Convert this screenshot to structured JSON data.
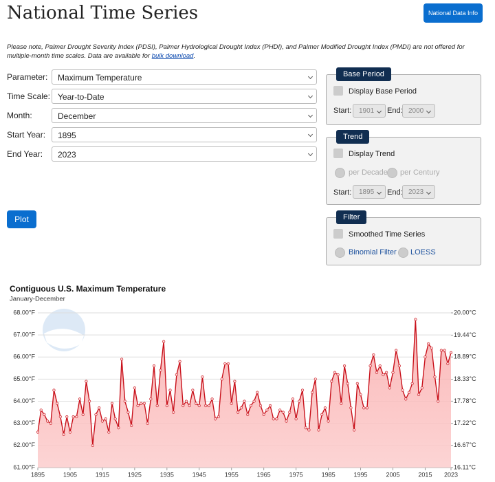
{
  "header": {
    "title": "National Time Series",
    "button": "National Data Info"
  },
  "note": {
    "text": "Please note, Palmer Drought Severity Index (PDSI), Palmer Hydrological Drought Index (PHDI), and Palmer Modified Drought Index (PMDI) are not offered for multiple-month time scales. Data are available for ",
    "link": "bulk download",
    "end": "."
  },
  "form": {
    "fields": [
      {
        "label": "Parameter:",
        "value": "Maximum Temperature"
      },
      {
        "label": "Time Scale:",
        "value": "Year-to-Date"
      },
      {
        "label": "Month:",
        "value": "December"
      },
      {
        "label": "Start Year:",
        "value": "1895"
      },
      {
        "label": "End Year:",
        "value": "2023"
      }
    ],
    "plot": "Plot"
  },
  "base_period": {
    "legend": "Base Period",
    "checkbox": "Display Base Period",
    "start_label": "Start:",
    "start": "1901",
    "end_label": "End:",
    "end": "2000"
  },
  "trend": {
    "legend": "Trend",
    "checkbox": "Display Trend",
    "radio1": "per Decade",
    "radio2": "per Century",
    "start_label": "Start:",
    "start": "1895",
    "end_label": "End:",
    "end": "2023"
  },
  "filter": {
    "legend": "Filter",
    "checkbox": "Smoothed Time Series",
    "radio1": "Binomial Filter",
    "radio2": "LOESS"
  },
  "chart_data": {
    "type": "line",
    "title": "Contiguous U.S. Maximum Temperature",
    "subtitle": "January-December",
    "x": [
      1895,
      1896,
      1897,
      1898,
      1899,
      1900,
      1901,
      1902,
      1903,
      1904,
      1905,
      1906,
      1907,
      1908,
      1909,
      1910,
      1911,
      1912,
      1913,
      1914,
      1915,
      1916,
      1917,
      1918,
      1919,
      1920,
      1921,
      1922,
      1923,
      1924,
      1925,
      1926,
      1927,
      1928,
      1929,
      1930,
      1931,
      1932,
      1933,
      1934,
      1935,
      1936,
      1937,
      1938,
      1939,
      1940,
      1941,
      1942,
      1943,
      1944,
      1945,
      1946,
      1947,
      1948,
      1949,
      1950,
      1951,
      1952,
      1953,
      1954,
      1955,
      1956,
      1957,
      1958,
      1959,
      1960,
      1961,
      1962,
      1963,
      1964,
      1965,
      1966,
      1967,
      1968,
      1969,
      1970,
      1971,
      1972,
      1973,
      1974,
      1975,
      1976,
      1977,
      1978,
      1979,
      1980,
      1981,
      1982,
      1983,
      1984,
      1985,
      1986,
      1987,
      1988,
      1989,
      1990,
      1991,
      1992,
      1993,
      1994,
      1995,
      1996,
      1997,
      1998,
      1999,
      2000,
      2001,
      2002,
      2003,
      2004,
      2005,
      2006,
      2007,
      2008,
      2009,
      2010,
      2011,
      2012,
      2013,
      2014,
      2015,
      2016,
      2017,
      2018,
      2019,
      2020,
      2021,
      2022,
      2023
    ],
    "series": [
      {
        "name": "Maximum Temperature",
        "color": "#c8101a",
        "values": [
          62.6,
          63.6,
          63.4,
          63.1,
          63.0,
          64.5,
          63.9,
          63.3,
          62.5,
          63.3,
          62.6,
          63.3,
          63.3,
          64.1,
          63.4,
          64.9,
          64.0,
          62.0,
          63.4,
          63.7,
          63.1,
          63.2,
          62.6,
          63.9,
          63.2,
          62.8,
          65.9,
          64.0,
          63.5,
          62.9,
          64.6,
          63.8,
          63.9,
          63.9,
          63.0,
          64.1,
          65.6,
          63.8,
          65.4,
          66.7,
          63.8,
          64.5,
          63.5,
          65.2,
          65.8,
          63.8,
          64.0,
          63.8,
          64.5,
          63.9,
          63.8,
          65.1,
          63.8,
          63.8,
          64.1,
          63.2,
          63.3,
          65.0,
          65.7,
          65.7,
          63.9,
          64.9,
          63.5,
          63.7,
          64.0,
          63.4,
          63.8,
          64.0,
          64.4,
          63.8,
          63.4,
          63.6,
          63.8,
          63.2,
          63.2,
          63.6,
          63.5,
          63.1,
          63.5,
          64.1,
          63.2,
          64.0,
          64.5,
          62.8,
          62.7,
          64.4,
          65.0,
          62.7,
          63.4,
          63.7,
          63.1,
          64.9,
          65.3,
          65.2,
          63.9,
          65.6,
          64.8,
          63.7,
          62.7,
          64.8,
          64.3,
          63.7,
          63.7,
          65.6,
          66.1,
          65.3,
          65.6,
          65.2,
          65.3,
          64.6,
          65.3,
          66.3,
          65.6,
          64.5,
          64.1,
          64.4,
          64.8,
          67.7,
          64.3,
          64.6,
          66.0,
          66.6,
          66.4,
          65.1,
          64.0,
          66.3,
          66.3,
          65.7,
          66.2
        ]
      }
    ],
    "xlim": [
      1895,
      2023
    ],
    "xticks": [
      1895,
      1905,
      1915,
      1925,
      1935,
      1945,
      1955,
      1965,
      1975,
      1985,
      1995,
      2005,
      2015,
      2023
    ],
    "ylim": [
      61,
      68
    ],
    "yticks": [
      {
        "value": 61,
        "label": "61.00°F"
      },
      {
        "value": 62,
        "label": "62.00°F"
      },
      {
        "value": 63,
        "label": "63.00°F"
      },
      {
        "value": 64,
        "label": "64.00°F"
      },
      {
        "value": 65,
        "label": "65.00°F"
      },
      {
        "value": 66,
        "label": "66.00°F"
      },
      {
        "value": 67,
        "label": "67.00°F"
      },
      {
        "value": 68,
        "label": "68.00°F"
      }
    ],
    "y2lim": [
      16.11,
      20.0
    ],
    "y2ticks": [
      {
        "value": 16.11,
        "label": "16.11°C"
      },
      {
        "value": 16.67,
        "label": "16.67°C"
      },
      {
        "value": 17.22,
        "label": "17.22°C"
      },
      {
        "value": 17.78,
        "label": "17.78°C"
      },
      {
        "value": 18.33,
        "label": "18.33°C"
      },
      {
        "value": 18.89,
        "label": "18.89°C"
      },
      {
        "value": 19.44,
        "label": "19.44°C"
      },
      {
        "value": 20.0,
        "label": "20.00°C"
      }
    ],
    "grid": true
  }
}
